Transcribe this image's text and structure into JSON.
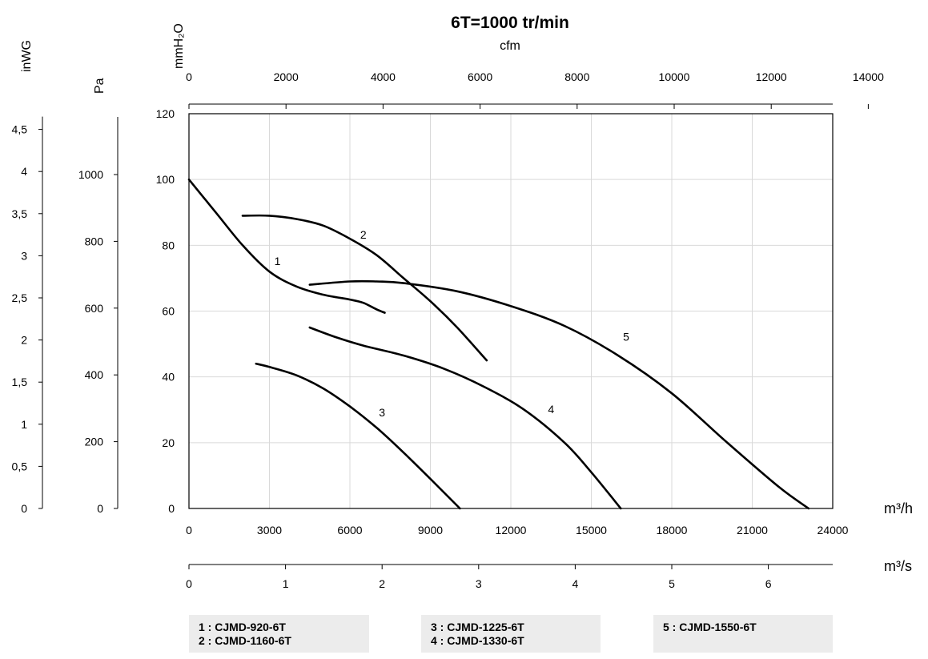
{
  "chart_data": {
    "type": "line",
    "title": "6T=1000 tr/min",
    "grid": true,
    "x_axis": {
      "label": "m³/h",
      "range": [
        0,
        24000
      ],
      "ticks": [
        0,
        3000,
        6000,
        9000,
        12000,
        15000,
        18000,
        21000,
        24000
      ]
    },
    "x_axis_m3s": {
      "label": "m³/s",
      "ticks": [
        "0",
        "1",
        "2",
        "3",
        "4",
        "5",
        "6"
      ]
    },
    "x_axis_cfm": {
      "label": "cfm",
      "ticks": [
        "0",
        "2000",
        "4000",
        "6000",
        "8000",
        "10000",
        "12000",
        "14000"
      ]
    },
    "y_axis": {
      "label": "mmH₂O",
      "range": [
        0,
        120
      ],
      "ticks": [
        0,
        20,
        40,
        60,
        80,
        100,
        120
      ]
    },
    "y_axis_pa": {
      "label": "Pa",
      "ticks": [
        "0",
        "200",
        "400",
        "600",
        "800",
        "1000"
      ]
    },
    "y_axis_inwg": {
      "label": "inWG",
      "ticks": [
        "0",
        "0,5",
        "1",
        "1,5",
        "2",
        "2,5",
        "3",
        "3,5",
        "4",
        "4,5"
      ]
    },
    "series": [
      {
        "name": "1",
        "label_at": [
          3300,
          74
        ],
        "x": [
          0,
          1000,
          2000,
          3000,
          4000,
          5000,
          6000,
          6500,
          7000,
          7300
        ],
        "y": [
          100,
          90,
          80,
          72,
          67.5,
          65,
          63.5,
          62.5,
          60.5,
          59.5
        ]
      },
      {
        "name": "2",
        "label_at": [
          6500,
          82
        ],
        "x": [
          2000,
          3000,
          4000,
          5000,
          6000,
          7000,
          8000,
          9000,
          10000,
          11100
        ],
        "y": [
          89,
          89,
          88,
          86,
          82,
          77,
          70,
          63,
          55,
          45
        ]
      },
      {
        "name": "3",
        "label_at": [
          7200,
          28
        ],
        "x": [
          2500,
          3000,
          4000,
          5000,
          6000,
          7000,
          8000,
          9000,
          10100
        ],
        "y": [
          44,
          43,
          40.5,
          36.5,
          31,
          24.5,
          17,
          9,
          0
        ]
      },
      {
        "name": "4",
        "label_at": [
          13500,
          29
        ],
        "x": [
          4500,
          5500,
          6500,
          8000,
          9500,
          11000,
          12500,
          14000,
          15000,
          16100
        ],
        "y": [
          55,
          52,
          49.5,
          46.5,
          42.5,
          37,
          30,
          20,
          11,
          0
        ]
      },
      {
        "name": "5",
        "label_at": [
          16300,
          51
        ],
        "x": [
          4500,
          6000,
          7000,
          8000,
          10000,
          12000,
          14000,
          16000,
          18000,
          20000,
          22000,
          23100
        ],
        "y": [
          68,
          69,
          69,
          68.5,
          66,
          61.5,
          55.5,
          46.5,
          35,
          20.5,
          6.5,
          0
        ]
      }
    ],
    "legend": [
      {
        "lines": [
          "1 : CJMD-920-6T",
          "2 : CJMD-1160-6T"
        ]
      },
      {
        "lines": [
          "3 : CJMD-1225-6T",
          "4 : CJMD-1330-6T"
        ]
      },
      {
        "lines": [
          "5 : CJMD-1550-6T"
        ]
      }
    ]
  }
}
